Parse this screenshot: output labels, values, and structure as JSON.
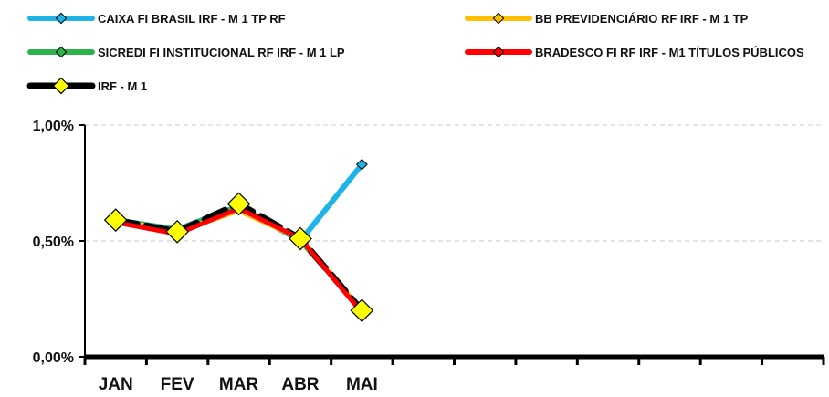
{
  "chart_data": {
    "type": "line",
    "title": "",
    "xlabel": "",
    "ylabel": "",
    "categories": [
      "JAN",
      "FEV",
      "MAR",
      "ABR",
      "MAI"
    ],
    "total_slots": 12,
    "ylim": [
      0,
      1.0
    ],
    "yticks": [
      0,
      0.5,
      1.0
    ],
    "ytick_labels": [
      "0,00%",
      "0,50%",
      "1,00%"
    ],
    "grid": true,
    "legend_position": "top",
    "series": [
      {
        "name": "CAIXA FI BRASIL IRF - M 1 TP RF",
        "color": "#1fb4e8",
        "marker_color": "#1fb4e8",
        "values": [
          0.59,
          0.55,
          0.65,
          0.5,
          0.83
        ]
      },
      {
        "name": "BB PREVIDENCIÁRIO RF IRF - M 1 TP",
        "color": "#ffc000",
        "marker_color": "#ffc000",
        "values": [
          0.59,
          0.54,
          0.63,
          0.51,
          0.2
        ]
      },
      {
        "name": "SICREDI FI INSTITUCIONAL RF IRF - M 1 LP",
        "color": "#2db34a",
        "marker_color": "#2db34a",
        "values": [
          0.59,
          0.55,
          0.65,
          0.5,
          0.2
        ]
      },
      {
        "name": "BRADESCO FI RF IRF - M1 TÍTULOS PÚBLICOS",
        "color": "#ff0000",
        "marker_color": "#ff0000",
        "values": [
          0.58,
          0.53,
          0.64,
          0.51,
          0.19
        ]
      },
      {
        "name": "IRF - M 1",
        "color": "#000000",
        "marker_color": "#ffff00",
        "dashed": true,
        "values": [
          0.59,
          0.54,
          0.66,
          0.51,
          0.2
        ]
      }
    ]
  }
}
